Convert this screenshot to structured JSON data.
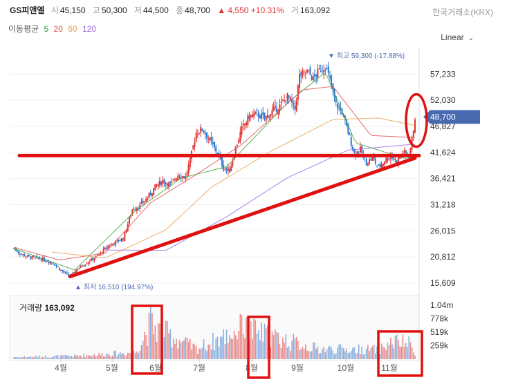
{
  "header": {
    "name": "GS피앤엘",
    "open_label": "시",
    "open": "45,150",
    "high_label": "고",
    "high": "50,300",
    "low_label": "저",
    "low": "44,500",
    "close_label": "종",
    "close": "48,700",
    "change": "▲ 4,550",
    "change_pct": "+10.31%",
    "volume_label": "거",
    "volume": "163,092",
    "exchange": "한국거래소(KRX)"
  },
  "ma_legend": {
    "label": "이동평균",
    "periods": [
      {
        "p": "5",
        "color": "#3aa03a"
      },
      {
        "p": "20",
        "color": "#e05050"
      },
      {
        "p": "60",
        "color": "#e8a050"
      },
      {
        "p": "120",
        "color": "#9a6ae0"
      }
    ]
  },
  "scale_select": {
    "label": "Linear",
    "icon": "chevron-down-icon"
  },
  "volume_panel": {
    "label": "거래량",
    "value": "163,092"
  },
  "colors": {
    "up": "#e03030",
    "down": "#2a78d4",
    "annotation": "#e01010",
    "current_tag": "#4a6ab0"
  },
  "chart_data": {
    "type": "candlestick",
    "price_axis": {
      "ticks": [
        15609,
        20812,
        26015,
        31218,
        36421,
        41624,
        46827,
        52030,
        57233
      ],
      "tick_labels": [
        "15,609",
        "20,812",
        "26,015",
        "31,218",
        "36,421",
        "41,624",
        "46,827",
        "52,030",
        "57,233"
      ],
      "range": [
        15609,
        61000
      ]
    },
    "month_labels": [
      "4월",
      "5월",
      "6월",
      "7월",
      "8월",
      "9월",
      "10월",
      "11월"
    ],
    "high_marker": "▼ 최고 59,300 (-17.88%)",
    "low_marker": "▲ 최저 16,510 (194.97%)",
    "current_price": "48,700",
    "volume_axis": {
      "tick_labels": [
        "1.04m",
        "778k",
        "519k",
        "259k"
      ],
      "ticks": [
        1040000,
        778000,
        519000,
        259000
      ],
      "max": 1200000
    },
    "price_anchors": [
      [
        0,
        22500
      ],
      [
        4,
        21500
      ],
      [
        10,
        20800
      ],
      [
        18,
        20400
      ],
      [
        26,
        19600
      ],
      [
        32,
        17900
      ],
      [
        37,
        16900
      ],
      [
        42,
        18500
      ],
      [
        48,
        19700
      ],
      [
        55,
        21000
      ],
      [
        62,
        23000
      ],
      [
        67,
        23800
      ],
      [
        72,
        24500
      ],
      [
        78,
        30300
      ],
      [
        83,
        31000
      ],
      [
        88,
        32600
      ],
      [
        93,
        34800
      ],
      [
        98,
        36000
      ],
      [
        103,
        35200
      ],
      [
        108,
        37200
      ],
      [
        113,
        36700
      ],
      [
        116,
        40000
      ],
      [
        120,
        45600
      ],
      [
        124,
        46300
      ],
      [
        128,
        44500
      ],
      [
        134,
        41500
      ],
      [
        138,
        38600
      ],
      [
        142,
        38000
      ],
      [
        146,
        42500
      ],
      [
        150,
        46300
      ],
      [
        155,
        48800
      ],
      [
        160,
        49300
      ],
      [
        165,
        48400
      ],
      [
        170,
        49800
      ],
      [
        175,
        50900
      ],
      [
        180,
        52800
      ],
      [
        185,
        50300
      ],
      [
        188,
        56800
      ],
      [
        193,
        57800
      ],
      [
        197,
        56300
      ],
      [
        202,
        58300
      ],
      [
        205,
        58800
      ],
      [
        208,
        56000
      ],
      [
        212,
        51200
      ],
      [
        216,
        49600
      ],
      [
        220,
        45600
      ],
      [
        224,
        41500
      ],
      [
        228,
        42100
      ],
      [
        232,
        39600
      ],
      [
        236,
        40500
      ],
      [
        240,
        38600
      ],
      [
        244,
        40000
      ],
      [
        248,
        41000
      ],
      [
        252,
        39800
      ],
      [
        256,
        41700
      ],
      [
        260,
        40900
      ],
      [
        262,
        44100
      ],
      [
        264,
        48700
      ]
    ],
    "ma_values_note": "5/20/60/120-day moving averages",
    "ma_anchors": {
      "5": [
        [
          0,
          22500
        ],
        [
          40,
          18200
        ],
        [
          80,
          30000
        ],
        [
          110,
          36500
        ],
        [
          140,
          38800
        ],
        [
          180,
          51500
        ],
        [
          205,
          57600
        ],
        [
          225,
          43500
        ],
        [
          260,
          40200
        ]
      ],
      "20": [
        [
          0,
          22700
        ],
        [
          30,
          20200
        ],
        [
          60,
          21600
        ],
        [
          90,
          31600
        ],
        [
          120,
          37200
        ],
        [
          150,
          43200
        ],
        [
          190,
          54100
        ],
        [
          210,
          54800
        ],
        [
          235,
          45000
        ],
        [
          264,
          44600
        ]
      ],
      "60": [
        [
          25,
          21800
        ],
        [
          60,
          20600
        ],
        [
          100,
          26200
        ],
        [
          130,
          34700
        ],
        [
          170,
          42000
        ],
        [
          210,
          48200
        ],
        [
          240,
          48500
        ],
        [
          264,
          47000
        ]
      ],
      "120": [
        [
          60,
          22200
        ],
        [
          100,
          22100
        ],
        [
          140,
          28800
        ],
        [
          180,
          36600
        ],
        [
          220,
          42100
        ],
        [
          264,
          43300
        ]
      ]
    },
    "volume_anchors": [
      [
        0,
        60000
      ],
      [
        40,
        90000
      ],
      [
        80,
        200000
      ],
      [
        90,
        1000000
      ],
      [
        120,
        300000
      ],
      [
        150,
        900000
      ],
      [
        200,
        300000
      ],
      [
        240,
        280000
      ],
      [
        250,
        520000
      ],
      [
        260,
        450000
      ],
      [
        264,
        163092
      ]
    ],
    "annotations": {
      "horizontal_line_price": 41000,
      "trendline": [
        [
          37,
          16900
        ],
        [
          264,
          40500
        ]
      ],
      "ellipse_center_price": 48000,
      "boxes": [
        "6월",
        "8월",
        "11월"
      ]
    },
    "n_days": 265
  }
}
